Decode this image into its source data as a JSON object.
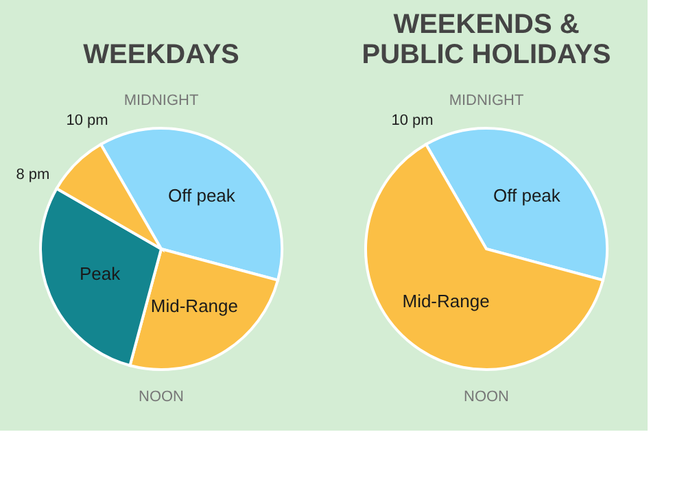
{
  "chart_data": [
    {
      "type": "pie",
      "title": "WEEKDAYS",
      "categories": [
        "Off peak",
        "Mid-Range",
        "Peak",
        null
      ],
      "values": [
        37.5,
        25,
        29.17,
        8.33
      ],
      "colors": [
        "#8cd9fb",
        "#fbbf45",
        "#13858f",
        "#fbbf45"
      ],
      "annotations": [
        "MIDNIGHT",
        "10 pm",
        "8 pm",
        "NOON"
      ]
    },
    {
      "type": "pie",
      "title": "WEEKENDS &\nPUBLIC HOLIDAYS",
      "categories": [
        "Off peak",
        "Mid-Range"
      ],
      "values": [
        37.5,
        62.5
      ],
      "colors": [
        "#8cd9fb",
        "#fbbf45"
      ],
      "annotations": [
        "MIDNIGHT",
        "10 pm",
        "NOON"
      ]
    }
  ]
}
